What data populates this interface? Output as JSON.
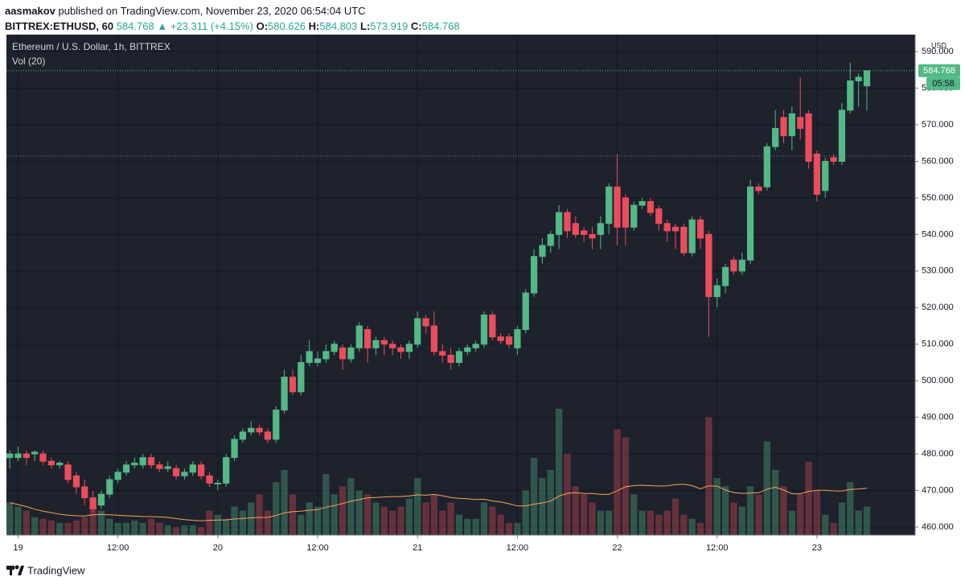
{
  "header": {
    "author": "aasmakov",
    "published": "published on TradingView.com, November 23, 2020 06:54:04 UTC",
    "symbol": "BITTREX:ETHUSD, 60",
    "last": "584.768",
    "arrow": "▲",
    "change": "+23.311 (+4.15%)",
    "ohlc": [
      {
        "label": "O:",
        "value": "580.626"
      },
      {
        "label": "H:",
        "value": "584.803"
      },
      {
        "label": "L:",
        "value": "573.919"
      },
      {
        "label": "C:",
        "value": "584.768"
      }
    ]
  },
  "chart_data": {
    "type": "candlestick",
    "title": "Ethereum / U.S. Dollar, 1h, BITTREX",
    "indicator": "Vol (20)",
    "currency": "USD",
    "price_label": "584.768",
    "countdown": "05:58",
    "up_color": "#53b987",
    "down_color": "#eb4d5c",
    "prev_close_line": 561.457,
    "open": [
      479,
      479,
      480,
      480,
      480,
      478,
      477,
      477,
      474,
      471,
      468,
      466,
      469,
      473,
      475,
      477,
      477,
      479,
      477,
      476,
      476,
      474,
      475,
      477,
      474,
      472,
      472,
      479,
      484,
      486,
      487,
      486,
      484,
      492,
      501,
      497,
      505,
      505,
      506,
      508,
      509,
      506,
      509,
      514,
      509,
      511,
      510,
      509,
      508,
      510,
      517,
      515,
      508,
      507,
      505,
      508,
      509,
      510,
      518,
      512,
      512,
      509,
      514,
      524,
      534,
      537,
      540,
      546,
      543,
      541,
      540,
      540,
      543,
      553,
      550,
      542,
      548,
      549,
      547,
      543,
      542,
      542,
      535,
      544,
      540,
      523,
      526,
      533,
      530,
      533,
      553,
      553,
      564,
      572,
      567,
      572,
      573,
      562,
      552,
      561,
      560,
      574,
      582,
      580.626
    ],
    "high": [
      481,
      482,
      481,
      481,
      481,
      479,
      478,
      478,
      475,
      473,
      470,
      470,
      474,
      476,
      478,
      479,
      480,
      480,
      478,
      478,
      477,
      476,
      478,
      478,
      475,
      473,
      480,
      485,
      487,
      489,
      488,
      487,
      493,
      503,
      503,
      507,
      511,
      508,
      510,
      511,
      510,
      510,
      516,
      515,
      512,
      512,
      511,
      510,
      511,
      519,
      518,
      519,
      510,
      509,
      509,
      510,
      511,
      519,
      519,
      513,
      513,
      515,
      525,
      536,
      539,
      541,
      548,
      547,
      545,
      542,
      542,
      545,
      554,
      562,
      551,
      549,
      550,
      550,
      548,
      544,
      543,
      543,
      545,
      545,
      541,
      528,
      532,
      534,
      535,
      555,
      554,
      565,
      574,
      574,
      575,
      583,
      574,
      563,
      561,
      562,
      576,
      587,
      584,
      584.803
    ],
    "low": [
      476,
      478,
      477,
      478,
      477,
      476,
      476,
      472,
      469,
      466,
      464,
      465,
      468,
      472,
      474,
      476,
      476,
      476,
      475,
      475,
      473,
      473,
      474,
      473,
      471,
      470,
      471,
      478,
      483,
      485,
      485,
      483,
      483,
      491,
      496,
      496,
      504,
      504,
      505,
      507,
      503,
      505,
      508,
      505,
      507,
      507,
      507,
      506,
      506,
      509,
      513,
      507,
      505,
      503,
      504,
      507,
      508,
      509,
      511,
      510,
      509,
      507,
      513,
      523,
      532,
      535,
      536,
      539,
      539,
      538,
      536,
      536,
      540,
      537,
      537,
      541,
      547,
      545,
      541,
      538,
      536,
      534,
      534,
      536,
      512,
      520,
      524,
      529,
      529,
      532,
      551,
      552,
      563,
      565,
      563,
      566,
      558,
      549,
      550,
      559,
      559,
      573,
      575,
      573.919
    ],
    "close": [
      480,
      480,
      479,
      480.5,
      478,
      477,
      477.5,
      473,
      471,
      468,
      465,
      469,
      473,
      475,
      477,
      477.5,
      479,
      477,
      476,
      476.5,
      474,
      475,
      477,
      474,
      472,
      472,
      479,
      484,
      486,
      487,
      486,
      484,
      492,
      501,
      497,
      505,
      508,
      506,
      508,
      510,
      506,
      509,
      515,
      509,
      511,
      510,
      509,
      508,
      510,
      517,
      515,
      508,
      507,
      505,
      508,
      509,
      510,
      518,
      512,
      511,
      510,
      514,
      524,
      534,
      537,
      540,
      546,
      541,
      540,
      540,
      539,
      543,
      553,
      542,
      542,
      548,
      549,
      546,
      543,
      541,
      541,
      535,
      544,
      539,
      523,
      526,
      531,
      530,
      533,
      553,
      552,
      564,
      569,
      567,
      573,
      569,
      560,
      551,
      560,
      560,
      574,
      582,
      583,
      584.768
    ],
    "volume": [
      40,
      35,
      30,
      22,
      20,
      18,
      15,
      15,
      18,
      22,
      40,
      30,
      20,
      15,
      15,
      18,
      15,
      20,
      15,
      12,
      10,
      12,
      12,
      10,
      30,
      25,
      20,
      35,
      30,
      40,
      50,
      30,
      65,
      80,
      50,
      25,
      40,
      35,
      75,
      50,
      60,
      70,
      55,
      50,
      40,
      35,
      30,
      35,
      45,
      70,
      40,
      50,
      30,
      40,
      25,
      20,
      20,
      40,
      35,
      25,
      15,
      15,
      55,
      95,
      70,
      80,
      155,
      100,
      60,
      50,
      40,
      30,
      30,
      130,
      120,
      50,
      30,
      30,
      25,
      30,
      45,
      25,
      20,
      15,
      145,
      70,
      60,
      40,
      35,
      60,
      50,
      115,
      80,
      60,
      30,
      50,
      90,
      55,
      25,
      15,
      40,
      65,
      30,
      35
    ],
    "ylim": [
      457.8,
      594.65
    ],
    "yticks": [
      {
        "value": 460,
        "label": "460.000"
      },
      {
        "value": 470,
        "label": "470.000"
      },
      {
        "value": 480,
        "label": "480.000"
      },
      {
        "value": 490,
        "label": "490.000"
      },
      {
        "value": 500,
        "label": "500.000"
      },
      {
        "value": 510,
        "label": "510.000"
      },
      {
        "value": 520,
        "label": "520.000"
      },
      {
        "value": 530,
        "label": "530.000"
      },
      {
        "value": 540,
        "label": "540.000"
      },
      {
        "value": 550,
        "label": "550.000"
      },
      {
        "value": 560,
        "label": "560.000"
      },
      {
        "value": 570,
        "label": "570.000"
      },
      {
        "value": 580,
        "label": "580.000"
      },
      {
        "value": 590,
        "label": "590.000"
      }
    ],
    "xlim": [
      -0.4,
      108.8
    ],
    "xticks": [
      {
        "value": 1,
        "label": "19"
      },
      {
        "value": 13,
        "label": "12:00"
      },
      {
        "value": 25,
        "label": "20"
      },
      {
        "value": 37,
        "label": "12:00"
      },
      {
        "value": 49,
        "label": "21"
      },
      {
        "value": 61,
        "label": "12:00"
      },
      {
        "value": 73,
        "label": "22"
      },
      {
        "value": 85,
        "label": "12:00"
      },
      {
        "value": 97,
        "label": "23"
      }
    ],
    "grid": true
  },
  "footer": {
    "brand": "TradingView"
  }
}
